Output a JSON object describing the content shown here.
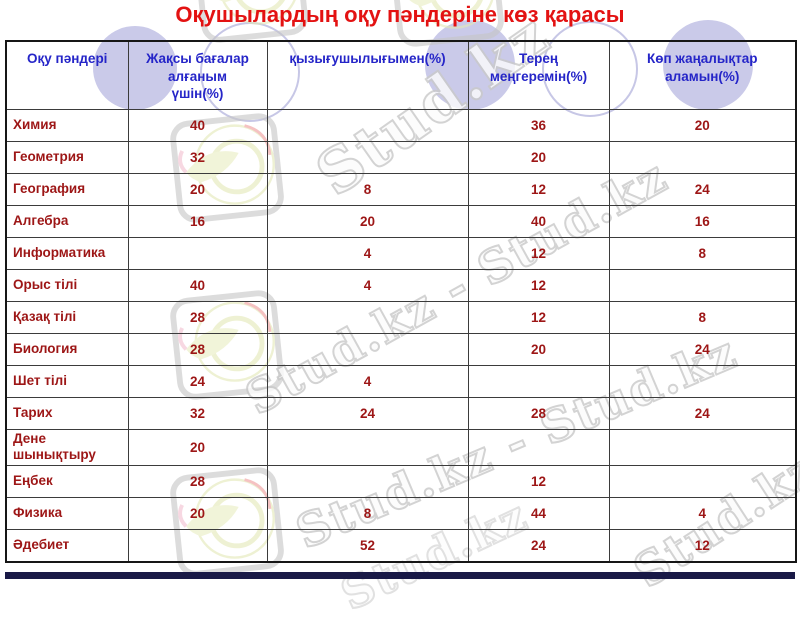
{
  "title": "Оқушылардың оқу пәндеріне көз қарасы",
  "table": {
    "columns": [
      "Оқу пәндері",
      "Жақсы бағалар\nалғаным\nүшін(%)",
      "қызығушылығымен(%)",
      "Терең\nмеңгеремін(%)",
      "Көп жаңалықтар\nаламын(%)"
    ],
    "rows": [
      {
        "subject": "Химия",
        "values": [
          "40",
          "",
          "36",
          "20"
        ]
      },
      {
        "subject": "Геометрия",
        "values": [
          "32",
          "",
          "20",
          ""
        ]
      },
      {
        "subject": "География",
        "values": [
          "20",
          "8",
          "12",
          "24"
        ]
      },
      {
        "subject": "Алгебра",
        "values": [
          "16",
          "20",
          "40",
          "16"
        ]
      },
      {
        "subject": "Информатика",
        "values": [
          "",
          "4",
          "12",
          "8"
        ]
      },
      {
        "subject": "Орыс тілі",
        "values": [
          "40",
          "4",
          "12",
          ""
        ]
      },
      {
        "subject": "Қазақ тілі",
        "values": [
          "28",
          "",
          "12",
          "8"
        ]
      },
      {
        "subject": "Биология",
        "values": [
          "28",
          "",
          "20",
          "24"
        ]
      },
      {
        "subject": "Шет тілі",
        "values": [
          "24",
          "4",
          "",
          ""
        ]
      },
      {
        "subject": "Тарих",
        "values": [
          "32",
          "24",
          "28",
          "24"
        ]
      },
      {
        "subject": "Дене шынықтыру",
        "values": [
          "20",
          "",
          "",
          ""
        ]
      },
      {
        "subject": "Еңбек",
        "values": [
          "28",
          "",
          "12",
          ""
        ]
      },
      {
        "subject": "Физика",
        "values": [
          "20",
          "8",
          "44",
          "4"
        ]
      },
      {
        "subject": "Әдебиет",
        "values": [
          "",
          "52",
          "24",
          "12"
        ]
      }
    ]
  },
  "watermark": {
    "brand": "Stud.kz",
    "tile_text": "Stud.kz - Stud.kz",
    "logo": "studkz-hummingbird-logo"
  },
  "colors": {
    "title_red": "#e31212",
    "header_blue": "#2525c8",
    "cell_dark_red": "#9d1616",
    "circle_lavender": "#cacae9",
    "bottom_bar_navy": "#191946"
  }
}
